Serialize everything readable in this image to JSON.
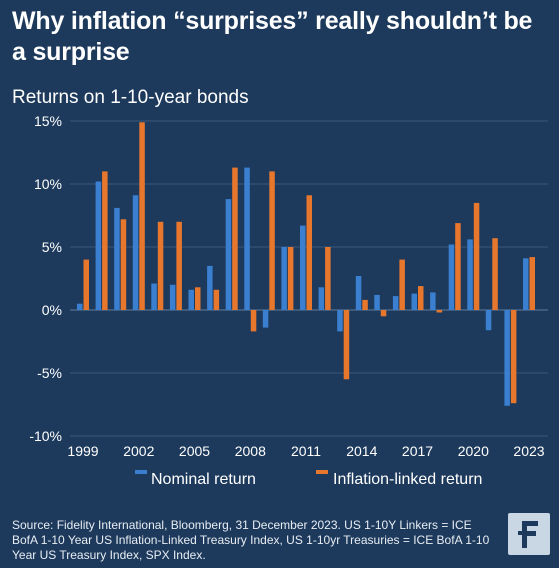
{
  "title": "Why inflation “surprises” really shouldn’t be a surprise",
  "subtitle": "Returns on 1-10-year bonds",
  "source": "Source: Fidelity International, Bloomberg, 31 December 2023. US 1-10Y Linkers = ICE BofA 1-10 Year US Inflation-Linked Treasury Index, US 1-10yr Treasuries = ICE BofA 1-10 Year US Treasury Index, SPX Index.",
  "logo_text": "F",
  "colors": {
    "background": "#1d3a5c",
    "nominal": "#3a7fd0",
    "inflation_linked": "#e8772e",
    "grid": "#3a5777"
  },
  "chart_data": {
    "type": "bar",
    "title": "",
    "xlabel": "",
    "ylabel": "",
    "ylim": [
      -10,
      15
    ],
    "yticks": [
      "15%",
      "10%",
      "5%",
      "0%",
      "-5%",
      "-10%"
    ],
    "ytick_values": [
      15,
      10,
      5,
      0,
      -5,
      -10
    ],
    "categories": [
      "1999",
      "2000",
      "2001",
      "2002",
      "2003",
      "2004",
      "2005",
      "2006",
      "2007",
      "2008",
      "2009",
      "2010",
      "2011",
      "2012",
      "2013",
      "2014",
      "2015",
      "2016",
      "2017",
      "2018",
      "2019",
      "2020",
      "2021",
      "2022",
      "2023"
    ],
    "xticks": [
      "1999",
      "2002",
      "2005",
      "2008",
      "2011",
      "2014",
      "2017",
      "2020",
      "2023"
    ],
    "grid": true,
    "legend_position": "bottom",
    "series": [
      {
        "name": "Nominal return",
        "values": [
          0.5,
          10.2,
          8.1,
          9.1,
          2.1,
          2.0,
          1.6,
          3.5,
          8.8,
          11.3,
          -1.4,
          5.0,
          6.7,
          1.8,
          -1.7,
          2.7,
          1.2,
          1.1,
          1.3,
          1.4,
          5.2,
          5.6,
          -1.6,
          -7.6,
          4.1
        ]
      },
      {
        "name": "Inflation-linked return",
        "values": [
          4.0,
          11.0,
          7.2,
          14.9,
          7.0,
          7.0,
          1.8,
          1.6,
          11.3,
          -1.7,
          11.0,
          5.0,
          9.1,
          5.0,
          -5.5,
          0.8,
          -0.5,
          4.0,
          1.9,
          -0.2,
          6.9,
          8.5,
          5.7,
          -7.4,
          4.2
        ]
      }
    ]
  }
}
